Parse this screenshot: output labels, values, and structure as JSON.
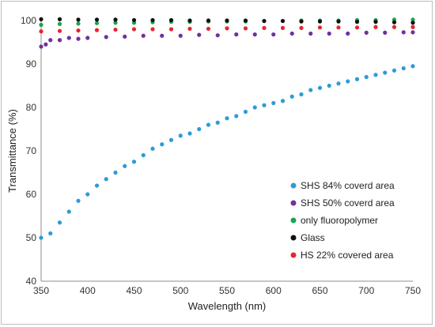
{
  "chart_data": {
    "type": "scatter",
    "title": "",
    "xlabel": "Wavelength (nm)",
    "ylabel": "Transmittance (%)",
    "xlim": [
      350,
      750
    ],
    "ylim": [
      40,
      100
    ],
    "x_ticks": [
      350,
      400,
      450,
      500,
      550,
      600,
      650,
      700,
      750
    ],
    "y_ticks": [
      40,
      50,
      60,
      70,
      80,
      90,
      100
    ],
    "grid": false,
    "legend_position": "bottom-right",
    "series": [
      {
        "name": "SHS 84% coverd area",
        "color": "#2f9bd7",
        "points": [
          [
            350,
            50
          ],
          [
            360,
            51
          ],
          [
            370,
            53.5
          ],
          [
            380,
            56
          ],
          [
            390,
            58.5
          ],
          [
            400,
            60
          ],
          [
            410,
            62
          ],
          [
            420,
            63.5
          ],
          [
            430,
            65
          ],
          [
            440,
            66.5
          ],
          [
            450,
            67.5
          ],
          [
            460,
            69
          ],
          [
            470,
            70.5
          ],
          [
            480,
            71.5
          ],
          [
            490,
            72.5
          ],
          [
            500,
            73.5
          ],
          [
            510,
            74
          ],
          [
            520,
            75
          ],
          [
            530,
            76
          ],
          [
            540,
            76.5
          ],
          [
            550,
            77.5
          ],
          [
            560,
            78
          ],
          [
            570,
            79
          ],
          [
            580,
            80
          ],
          [
            590,
            80.5
          ],
          [
            600,
            81
          ],
          [
            610,
            81.5
          ],
          [
            620,
            82.5
          ],
          [
            630,
            83
          ],
          [
            640,
            84
          ],
          [
            650,
            84.5
          ],
          [
            660,
            85
          ],
          [
            670,
            85.5
          ],
          [
            680,
            86
          ],
          [
            690,
            86.5
          ],
          [
            700,
            87
          ],
          [
            710,
            87.5
          ],
          [
            720,
            88
          ],
          [
            730,
            88.5
          ],
          [
            740,
            89
          ],
          [
            750,
            89.5
          ]
        ]
      },
      {
        "name": "SHS 50% coverd area",
        "color": "#7030a0",
        "points": [
          [
            350,
            94
          ],
          [
            355,
            94.5
          ],
          [
            360,
            95.5
          ],
          [
            370,
            95.5
          ],
          [
            380,
            96
          ],
          [
            390,
            95.8
          ],
          [
            400,
            96
          ],
          [
            420,
            96.2
          ],
          [
            440,
            96.3
          ],
          [
            460,
            96.5
          ],
          [
            480,
            96.5
          ],
          [
            500,
            96.5
          ],
          [
            520,
            96.7
          ],
          [
            540,
            96.6
          ],
          [
            560,
            96.8
          ],
          [
            580,
            96.8
          ],
          [
            600,
            96.8
          ],
          [
            620,
            97
          ],
          [
            640,
            97
          ],
          [
            660,
            97
          ],
          [
            680,
            97
          ],
          [
            700,
            97.2
          ],
          [
            720,
            97.2
          ],
          [
            740,
            97.3
          ],
          [
            750,
            97.3
          ]
        ]
      },
      {
        "name": "only fluoropolymer",
        "color": "#1ba354",
        "points": [
          [
            350,
            99
          ],
          [
            370,
            99.2
          ],
          [
            390,
            99.3
          ],
          [
            410,
            99.4
          ],
          [
            430,
            99.5
          ],
          [
            450,
            99.5
          ],
          [
            470,
            99.6
          ],
          [
            490,
            99.7
          ],
          [
            510,
            99.7
          ],
          [
            530,
            99.8
          ],
          [
            550,
            99.8
          ],
          [
            570,
            99.8
          ],
          [
            590,
            99.9
          ],
          [
            610,
            99.9
          ],
          [
            630,
            100
          ],
          [
            650,
            100
          ],
          [
            670,
            100
          ],
          [
            690,
            100.1
          ],
          [
            710,
            100.1
          ],
          [
            730,
            100.2
          ],
          [
            750,
            100.2
          ]
        ]
      },
      {
        "name": "Glass",
        "color": "#111111",
        "points": [
          [
            350,
            100.3
          ],
          [
            370,
            100.3
          ],
          [
            390,
            100.2
          ],
          [
            410,
            100.2
          ],
          [
            430,
            100.2
          ],
          [
            450,
            100.1
          ],
          [
            470,
            100.1
          ],
          [
            490,
            100.1
          ],
          [
            510,
            100
          ],
          [
            530,
            100
          ],
          [
            550,
            100
          ],
          [
            570,
            100
          ],
          [
            590,
            99.9
          ],
          [
            610,
            99.9
          ],
          [
            630,
            99.8
          ],
          [
            650,
            99.8
          ],
          [
            670,
            99.8
          ],
          [
            690,
            99.7
          ],
          [
            710,
            99.7
          ],
          [
            730,
            99.6
          ],
          [
            750,
            99.5
          ]
        ]
      },
      {
        "name": "HS 22% covered area",
        "color": "#e8252d",
        "points": [
          [
            350,
            97.5
          ],
          [
            370,
            97.6
          ],
          [
            390,
            97.7
          ],
          [
            410,
            97.8
          ],
          [
            430,
            97.9
          ],
          [
            450,
            98
          ],
          [
            470,
            98
          ],
          [
            490,
            98
          ],
          [
            510,
            98.1
          ],
          [
            530,
            98.1
          ],
          [
            550,
            98.2
          ],
          [
            570,
            98.2
          ],
          [
            590,
            98.3
          ],
          [
            610,
            98.3
          ],
          [
            630,
            98.3
          ],
          [
            650,
            98.4
          ],
          [
            670,
            98.4
          ],
          [
            690,
            98.4
          ],
          [
            710,
            98.5
          ],
          [
            730,
            98.5
          ],
          [
            750,
            98.5
          ]
        ]
      }
    ]
  }
}
